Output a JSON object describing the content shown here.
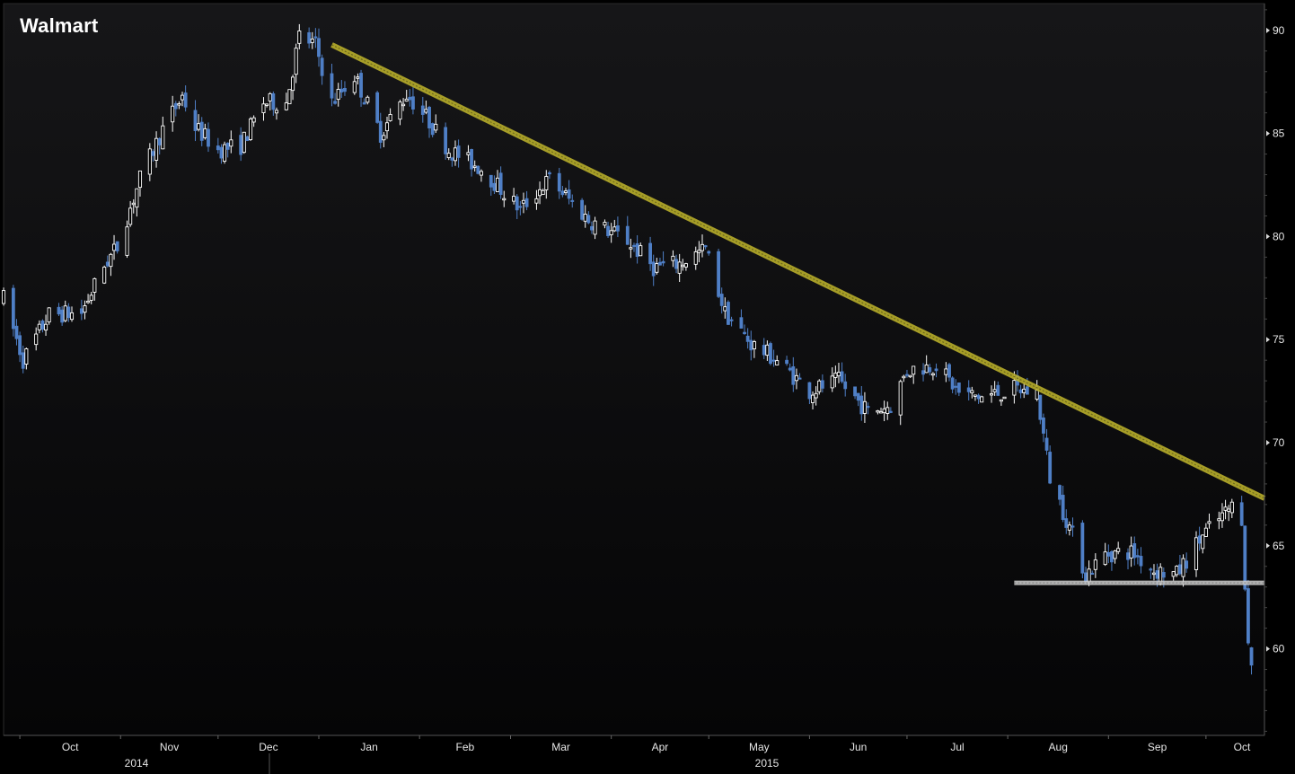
{
  "title": "Walmart",
  "colors": {
    "background": "#000000",
    "plot_top": "#161618",
    "plot_bottom": "#050506",
    "up_candle": "#ffffff",
    "down_candle": "#4f7fc6",
    "trendline": "#b7ad2a",
    "support": "#cfcfcf",
    "axis_text": "#e6e6e6"
  },
  "chart_data": {
    "type": "candlestick",
    "title": "Walmart",
    "ylim": [
      55.8,
      91.3
    ],
    "y_ticks": [
      60,
      65,
      70,
      75,
      80,
      85,
      90
    ],
    "x_range": [
      "2014-09-26",
      "2015-10-19"
    ],
    "months": [
      {
        "label": "Oct",
        "date": "2014-10-01"
      },
      {
        "label": "Nov",
        "date": "2014-11-01"
      },
      {
        "label": "Dec",
        "date": "2014-12-01"
      },
      {
        "label": "Jan",
        "date": "2015-01-01"
      },
      {
        "label": "Feb",
        "date": "2015-02-01"
      },
      {
        "label": "Mar",
        "date": "2015-03-01"
      },
      {
        "label": "Apr",
        "date": "2015-04-01"
      },
      {
        "label": "May",
        "date": "2015-05-01"
      },
      {
        "label": "Jun",
        "date": "2015-06-01"
      },
      {
        "label": "Jul",
        "date": "2015-07-01"
      },
      {
        "label": "Aug",
        "date": "2015-08-01"
      },
      {
        "label": "Sep",
        "date": "2015-09-01"
      },
      {
        "label": "Oct",
        "date": "2015-10-01"
      }
    ],
    "years": [
      {
        "label": "2014",
        "from": "2014-09-26",
        "to": "2014-12-31"
      },
      {
        "label": "2015",
        "from": "2015-01-01",
        "to": "2015-10-19"
      }
    ],
    "price_path": [
      [
        "2014-09-26",
        77.0
      ],
      [
        "2014-10-02",
        74.0
      ],
      [
        "2014-10-10",
        76.2
      ],
      [
        "2014-10-20",
        76.3
      ],
      [
        "2014-10-27",
        78.6
      ],
      [
        "2014-10-31",
        79.5
      ],
      [
        "2014-11-07",
        82.8
      ],
      [
        "2014-11-14",
        85.2
      ],
      [
        "2014-11-20",
        86.8
      ],
      [
        "2014-11-24",
        85.3
      ],
      [
        "2014-12-01",
        84.2
      ],
      [
        "2014-12-08",
        84.4
      ],
      [
        "2014-12-15",
        86.5
      ],
      [
        "2014-12-22",
        86.5
      ],
      [
        "2014-12-26",
        89.7
      ],
      [
        "2014-12-31",
        89.3
      ],
      [
        "2015-01-05",
        86.5
      ],
      [
        "2015-01-12",
        87.8
      ],
      [
        "2015-01-20",
        85.0
      ],
      [
        "2015-01-28",
        86.9
      ],
      [
        "2015-02-03",
        85.8
      ],
      [
        "2015-02-10",
        84.2
      ],
      [
        "2015-02-20",
        83.3
      ],
      [
        "2015-03-04",
        81.3
      ],
      [
        "2015-03-13",
        82.8
      ],
      [
        "2015-03-25",
        80.8
      ],
      [
        "2015-04-06",
        79.8
      ],
      [
        "2015-04-14",
        78.5
      ],
      [
        "2015-04-22",
        78.7
      ],
      [
        "2015-04-30",
        79.4
      ],
      [
        "2015-05-06",
        76.3
      ],
      [
        "2015-05-14",
        74.8
      ],
      [
        "2015-05-22",
        74.0
      ],
      [
        "2015-06-01",
        72.5
      ],
      [
        "2015-06-10",
        73.0
      ],
      [
        "2015-06-19",
        71.5
      ],
      [
        "2015-06-26",
        71.8
      ],
      [
        "2015-07-01",
        73.5
      ],
      [
        "2015-07-10",
        73.8
      ],
      [
        "2015-07-17",
        72.4
      ],
      [
        "2015-07-24",
        72.2
      ],
      [
        "2015-08-03",
        72.6
      ],
      [
        "2015-08-10",
        72.4
      ],
      [
        "2015-08-14",
        68.3
      ],
      [
        "2015-08-21",
        65.5
      ],
      [
        "2015-08-25",
        63.6
      ],
      [
        "2015-08-31",
        64.6
      ],
      [
        "2015-09-08",
        64.7
      ],
      [
        "2015-09-15",
        63.8
      ],
      [
        "2015-09-22",
        63.6
      ],
      [
        "2015-09-30",
        65.5
      ],
      [
        "2015-10-09",
        66.9
      ],
      [
        "2015-10-12",
        66.4
      ],
      [
        "2015-10-14",
        60.1
      ],
      [
        "2015-10-15",
        59.3
      ]
    ],
    "annotations": [
      {
        "type": "trendline",
        "from": [
          "2015-01-05",
          89.3
        ],
        "to": [
          "2015-10-19",
          67.3
        ]
      },
      {
        "type": "support",
        "from": [
          "2015-08-03",
          63.2
        ],
        "to": [
          "2015-10-19",
          63.2
        ]
      }
    ]
  }
}
